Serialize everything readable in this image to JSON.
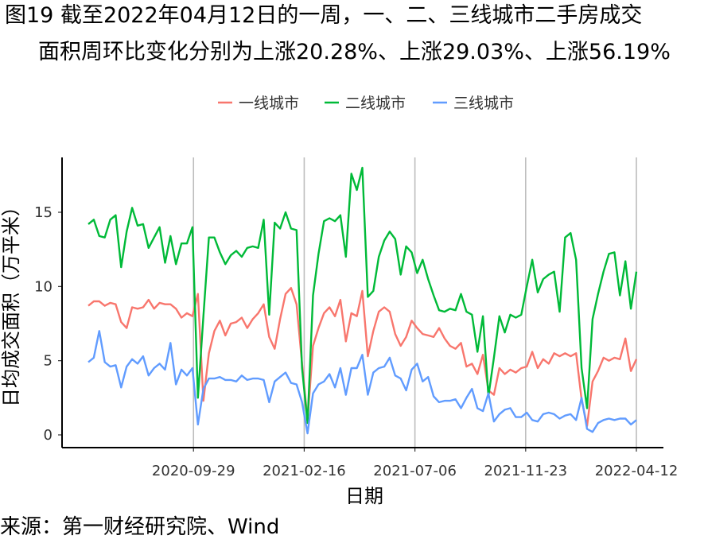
{
  "title": {
    "line1": "图19  截至2022年04月12日的一周，一、二、三线城市二手房成交",
    "line2": "面积周环比变化分别为上涨20.28%、上涨29.03%、上涨56.19%"
  },
  "source": "来源：第一财经研究院、Wind",
  "chart_data": {
    "type": "line",
    "xlabel": "日期",
    "ylabel": "日均成交面积（万平米）",
    "ylim": [
      0,
      18
    ],
    "yticks": [
      0,
      5,
      10,
      15
    ],
    "xticks": [
      "2020-09-29",
      "2021-02-16",
      "2021-07-06",
      "2021-11-23",
      "2022-04-12"
    ],
    "legend_position": "top",
    "vertical_gridlines_at_xticks": true,
    "x_start": "2020-05-19",
    "x_end": "2022-04-12",
    "series": [
      {
        "name": "一线城市",
        "color": "#F8766D",
        "values": [
          8.7,
          9.0,
          9.0,
          8.7,
          8.9,
          8.8,
          7.6,
          7.2,
          8.6,
          8.5,
          8.6,
          9.1,
          8.5,
          8.9,
          8.8,
          8.8,
          8.5,
          7.9,
          8.2,
          8.0,
          9.5,
          2.3,
          5.5,
          7.0,
          7.7,
          6.7,
          7.5,
          7.6,
          7.9,
          7.2,
          7.8,
          8.2,
          8.8,
          6.6,
          5.8,
          7.8,
          9.5,
          9.9,
          8.8,
          4.8,
          1.0,
          6.0,
          7.2,
          8.2,
          8.6,
          8.0,
          9.1,
          6.3,
          8.2,
          8.0,
          9.7,
          5.3,
          7.0,
          8.3,
          8.6,
          8.3,
          6.8,
          6.0,
          6.6,
          7.7,
          7.2,
          6.8,
          6.7,
          6.6,
          7.2,
          6.5,
          6.0,
          5.8,
          6.2,
          4.6,
          4.8,
          4.1,
          5.4,
          3.0,
          2.7,
          4.5,
          4.1,
          4.4,
          4.2,
          4.5,
          4.6,
          5.6,
          4.5,
          5.1,
          4.8,
          5.5,
          5.3,
          5.5,
          5.3,
          5.5,
          2.4,
          0.6,
          3.6,
          4.3,
          5.2,
          5.0,
          5.2,
          5.1,
          6.5,
          4.3,
          5.1
        ]
      },
      {
        "name": "二线城市",
        "color": "#00BA38",
        "values": [
          14.2,
          14.5,
          13.4,
          13.3,
          14.5,
          14.8,
          11.3,
          13.7,
          15.3,
          14.1,
          14.2,
          12.6,
          13.3,
          14.0,
          11.6,
          13.4,
          11.5,
          12.9,
          12.9,
          14.0,
          2.5,
          8.0,
          13.3,
          13.3,
          12.3,
          11.5,
          12.1,
          12.4,
          12.0,
          12.6,
          12.7,
          12.6,
          14.5,
          8.1,
          14.3,
          13.9,
          15.0,
          13.9,
          13.8,
          4.5,
          0.8,
          9.4,
          12.2,
          14.4,
          14.6,
          14.4,
          14.8,
          12.0,
          17.6,
          16.5,
          18.0,
          9.3,
          9.7,
          12.0,
          13.1,
          13.7,
          13.2,
          10.8,
          12.7,
          12.3,
          10.9,
          11.8,
          10.5,
          9.4,
          8.4,
          8.3,
          8.5,
          8.4,
          9.5,
          8.3,
          8.1,
          5.6,
          8.0,
          2.6,
          5.2,
          8.0,
          6.9,
          8.1,
          7.9,
          8.1,
          10.0,
          11.8,
          9.6,
          10.5,
          10.8,
          11.0,
          8.3,
          13.3,
          13.6,
          11.8,
          4.5,
          1.8,
          7.8,
          9.5,
          11.0,
          12.2,
          12.3,
          9.4,
          11.7,
          8.5,
          11.0
        ]
      },
      {
        "name": "三线城市",
        "color": "#619CFF",
        "values": [
          4.9,
          5.2,
          7.0,
          4.9,
          4.6,
          4.7,
          3.2,
          4.6,
          5.1,
          4.8,
          5.3,
          4.0,
          4.5,
          4.8,
          4.4,
          6.2,
          3.4,
          4.4,
          4.0,
          4.5,
          0.7,
          3.1,
          3.8,
          3.8,
          3.9,
          3.7,
          3.7,
          3.6,
          4.0,
          3.7,
          3.8,
          3.8,
          3.7,
          2.2,
          3.6,
          3.9,
          4.2,
          3.5,
          3.4,
          2.2,
          0.1,
          2.8,
          3.4,
          3.6,
          4.1,
          3.2,
          4.5,
          2.7,
          4.5,
          4.5,
          5.4,
          2.7,
          4.2,
          4.5,
          4.6,
          5.2,
          4.0,
          3.8,
          3.0,
          4.4,
          4.8,
          3.6,
          3.9,
          2.6,
          2.2,
          2.3,
          2.3,
          2.4,
          1.8,
          2.5,
          3.1,
          1.8,
          1.6,
          2.8,
          0.9,
          1.4,
          1.7,
          1.8,
          1.2,
          1.2,
          1.5,
          1.0,
          0.9,
          1.4,
          1.5,
          1.4,
          1.1,
          1.3,
          1.4,
          1.0,
          2.5,
          0.4,
          0.2,
          0.8,
          1.0,
          1.1,
          1.0,
          1.1,
          1.1,
          0.7,
          1.0
        ]
      }
    ]
  }
}
